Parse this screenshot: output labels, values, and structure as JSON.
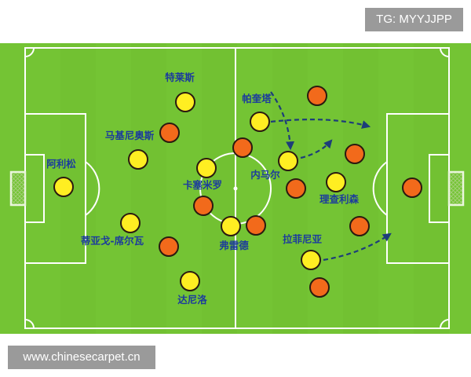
{
  "watermarks": {
    "top": "TG: MYYJJPP",
    "bottom": "www.chinesecarpet.cn"
  },
  "colors": {
    "pitch": "#74c434",
    "lines": "#ffffff",
    "team_home": "#ffee22",
    "team_away": "#f26a1b",
    "arrows": "#1d3d7a",
    "labels": "#1c3c9c"
  },
  "players_home": [
    {
      "name": "特莱斯"
    },
    {
      "name": "马基尼奥斯"
    },
    {
      "name": "阿利松"
    },
    {
      "name": "蒂亚戈-席尔瓦"
    },
    {
      "name": "达尼洛"
    },
    {
      "name": "卡塞米罗"
    },
    {
      "name": "弗雷德"
    },
    {
      "name": "帕奎塔"
    },
    {
      "name": "内马尔"
    },
    {
      "name": "理查利森"
    },
    {
      "name": "拉菲尼亚"
    }
  ],
  "players_away_count": 11
}
